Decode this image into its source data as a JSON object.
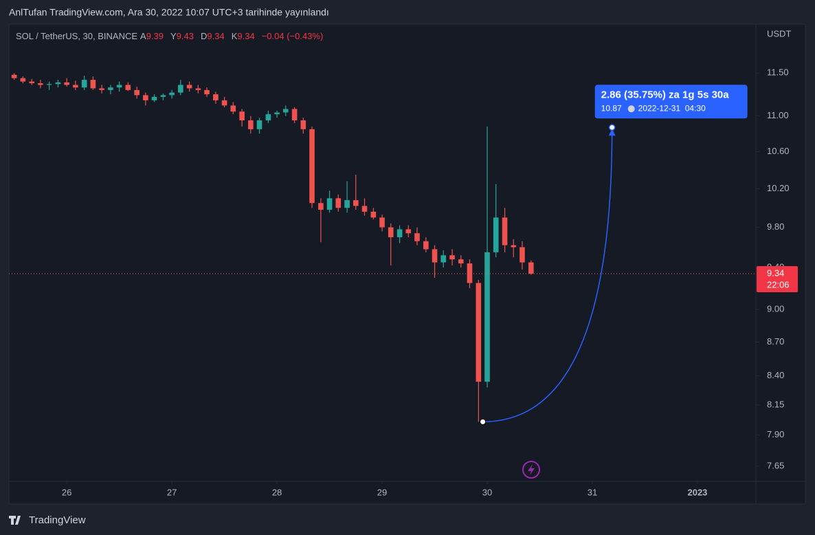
{
  "header": {
    "text": "AnlTufan TradingView.com, Ara 30, 2022 10:07 UTC+3 tarihinde yayınlandı"
  },
  "footer": {
    "brand": "TradingView"
  },
  "chart_data": {
    "type": "candlestick",
    "legend": {
      "symbol": "SOL / TetherUS, 30, BINANCE",
      "open_label": "A",
      "open": 9.39,
      "high_label": "Y",
      "high": 9.43,
      "low_label": "D",
      "low": 9.34,
      "close_label": "K",
      "close": 9.34,
      "change": "−0.04 (−0.43%)"
    },
    "currency": "USDT",
    "log_scale": true,
    "grid": false,
    "up_color": "#26a69a",
    "down_color": "#ef5350",
    "xlim": [
      25.45,
      32.556
    ],
    "xticks": [
      26,
      27,
      28,
      29,
      30,
      31,
      {
        "value": 32,
        "label": "2023"
      }
    ],
    "ylim": [
      7.53,
      12.1
    ],
    "yticks": [
      {
        "value": 7.65,
        "label": "7.65"
      },
      {
        "value": 7.9,
        "label": "7.90"
      },
      {
        "value": 8.15,
        "label": "8.15"
      },
      {
        "value": 8.4,
        "label": "8.40"
      },
      {
        "value": 8.7,
        "label": "8.70"
      },
      {
        "value": 9,
        "label": "9.00"
      },
      {
        "value": 9.4,
        "label": "9.40"
      },
      {
        "value": 9.8,
        "label": "9.80"
      },
      {
        "value": 10.2,
        "label": "10.20"
      },
      {
        "value": 10.6,
        "label": "10.60"
      },
      {
        "value": 11,
        "label": "11.00"
      },
      {
        "value": 11.5,
        "label": "11.50"
      }
    ],
    "x": [
      25.5,
      25.583,
      25.667,
      25.75,
      25.833,
      25.917,
      26.0,
      26.083,
      26.167,
      26.25,
      26.333,
      26.417,
      26.5,
      26.583,
      26.667,
      26.75,
      26.833,
      26.917,
      27.0,
      27.083,
      27.167,
      27.25,
      27.333,
      27.417,
      27.5,
      27.583,
      27.667,
      27.75,
      27.833,
      27.917,
      28.0,
      28.083,
      28.167,
      28.25,
      28.333,
      28.417,
      28.5,
      28.583,
      28.667,
      28.75,
      28.833,
      28.917,
      29.0,
      29.083,
      29.167,
      29.25,
      29.333,
      29.417,
      29.5,
      29.583,
      29.667,
      29.75,
      29.833,
      29.917,
      30.0,
      30.083,
      30.167,
      30.25,
      30.333,
      30.417
    ],
    "open": [
      11.48,
      11.44,
      11.4,
      11.38,
      11.36,
      11.37,
      11.39,
      11.36,
      11.33,
      11.42,
      11.32,
      11.3,
      11.33,
      11.36,
      11.3,
      11.24,
      11.18,
      11.22,
      11.24,
      11.27,
      11.36,
      11.32,
      11.3,
      11.25,
      11.18,
      11.12,
      11.05,
      10.95,
      10.85,
      10.95,
      11.02,
      11.04,
      11.08,
      10.95,
      10.85,
      10.05,
      9.98,
      10.1,
      10.0,
      10.08,
      10.02,
      9.96,
      9.9,
      9.8,
      9.7,
      9.78,
      9.74,
      9.66,
      9.58,
      9.45,
      9.52,
      9.48,
      9.44,
      9.25,
      8.35,
      9.55,
      9.9,
      9.62,
      9.6,
      9.45
    ],
    "high": [
      11.5,
      11.46,
      11.43,
      11.42,
      11.4,
      11.42,
      11.44,
      11.41,
      11.47,
      11.46,
      11.36,
      11.36,
      11.4,
      11.39,
      11.34,
      11.27,
      11.25,
      11.26,
      11.3,
      11.42,
      11.4,
      11.36,
      11.33,
      11.28,
      11.22,
      11.16,
      11.08,
      11.0,
      10.98,
      11.06,
      11.06,
      11.12,
      11.1,
      10.98,
      10.88,
      10.1,
      10.18,
      10.14,
      10.28,
      10.35,
      10.1,
      10.0,
      9.93,
      9.84,
      9.82,
      9.82,
      9.8,
      9.7,
      9.62,
      9.57,
      9.58,
      9.52,
      9.48,
      9.28,
      10.88,
      10.25,
      10.0,
      9.68,
      9.66,
      9.47
    ],
    "low": [
      11.42,
      11.38,
      11.36,
      11.32,
      11.3,
      11.33,
      11.34,
      11.3,
      11.3,
      11.3,
      11.26,
      11.25,
      11.28,
      11.29,
      11.2,
      11.12,
      11.16,
      11.18,
      11.2,
      11.24,
      11.28,
      11.26,
      11.22,
      11.14,
      11.1,
      11.02,
      10.88,
      10.8,
      10.8,
      10.92,
      10.98,
      11.0,
      10.92,
      10.8,
      10.0,
      9.65,
      9.95,
      9.96,
      9.95,
      9.98,
      9.92,
      9.88,
      9.76,
      9.42,
      9.64,
      9.7,
      9.62,
      9.55,
      9.3,
      9.4,
      9.42,
      9.4,
      9.2,
      8.01,
      8.3,
      9.5,
      9.55,
      9.5,
      9.38,
      9.33
    ],
    "close": [
      11.44,
      11.4,
      11.38,
      11.36,
      11.37,
      11.39,
      11.36,
      11.33,
      11.42,
      11.32,
      11.3,
      11.33,
      11.36,
      11.3,
      11.24,
      11.18,
      11.22,
      11.24,
      11.27,
      11.36,
      11.32,
      11.3,
      11.25,
      11.18,
      11.12,
      11.05,
      10.95,
      10.85,
      10.95,
      11.02,
      11.04,
      11.08,
      10.95,
      10.85,
      10.05,
      9.98,
      10.1,
      10.0,
      10.08,
      10.02,
      9.96,
      9.9,
      9.8,
      9.7,
      9.78,
      9.74,
      9.66,
      9.58,
      9.45,
      9.52,
      9.48,
      9.44,
      9.25,
      8.35,
      9.55,
      9.9,
      9.62,
      9.6,
      9.45,
      9.34
    ],
    "last_price": 9.34,
    "countdown": "22:06",
    "projection": {
      "start_x": 29.958,
      "start_y": 8.01,
      "end_x": 31.1875,
      "end_y": 10.87,
      "label": "2.86 (35.75%) za 1g 5s 30a",
      "end_time": "2022-12-31  04:30"
    }
  }
}
